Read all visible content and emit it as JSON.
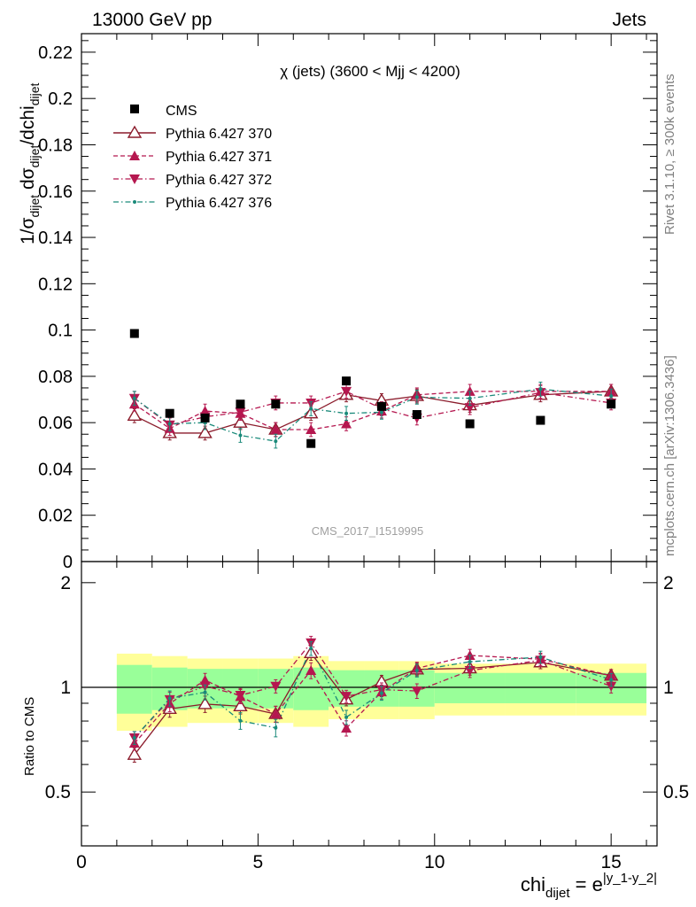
{
  "header": {
    "left": "13000 GeV pp",
    "right": "Jets"
  },
  "side_labels": {
    "rivet": "Rivet 3.1.10, ≥ 300k events",
    "mcplots": "mcplots.cern.ch [arXiv:1306.3436]"
  },
  "chart_data": {
    "type": "scatter",
    "title": "χ (jets) (3600 < Mjj < 4200)",
    "watermark": "CMS_2017_I1519995",
    "xlabel": {
      "base": "chi",
      "sub": "dijet",
      "mid": " = e",
      "sup": "|y_1-y_2|"
    },
    "ylabel": {
      "a": "1/σ",
      "a_sub": "dijet",
      "b": " dσ",
      "b_sub": "dijet",
      "c": "/dchi",
      "c_sub": "dijet"
    },
    "ratio_ylabel": "Ratio to CMS",
    "xlim": [
      0,
      16.3
    ],
    "ylim": [
      0,
      0.228
    ],
    "ratio_ylim": [
      0.35,
      2.3
    ],
    "ratio_log": true,
    "x_ticks": [
      0,
      5,
      10,
      15
    ],
    "y_ticks": [
      0,
      0.02,
      0.04,
      0.06,
      0.08,
      0.1,
      0.12,
      0.14,
      0.16,
      0.18,
      0.2,
      0.22
    ],
    "y_tick_labels": [
      "0",
      "0.02",
      "0.04",
      "0.06",
      "0.08",
      "0.1",
      "0.12",
      "0.14",
      "0.16",
      "0.18",
      "0.2",
      "0.22"
    ],
    "ratio_ticks": [
      0.5,
      1,
      2
    ],
    "ratio_tick_labels": [
      "0.5",
      "1",
      "2"
    ],
    "x": [
      1.5,
      2.5,
      3.5,
      4.5,
      5.5,
      6.5,
      7.5,
      8.5,
      9.5,
      11,
      13,
      15
    ],
    "bin_edges": [
      1,
      2,
      3,
      4,
      5,
      6,
      7,
      8,
      9,
      10,
      12,
      14,
      16
    ],
    "cms": {
      "name": "CMS",
      "values": [
        0.0985,
        0.064,
        0.062,
        0.068,
        0.068,
        0.051,
        0.078,
        0.067,
        0.0635,
        0.0595,
        0.061,
        0.068
      ]
    },
    "band_inner": [
      0.16,
      0.14,
      0.13,
      0.13,
      0.13,
      0.14,
      0.12,
      0.12,
      0.12,
      0.1,
      0.1,
      0.1
    ],
    "band_outer": [
      0.25,
      0.23,
      0.21,
      0.21,
      0.21,
      0.23,
      0.19,
      0.19,
      0.19,
      0.17,
      0.17,
      0.17
    ],
    "series": [
      {
        "name": "Pythia 6.427 370",
        "color": "#8b1b2b",
        "marker": "triangle-up-open",
        "line": "solid",
        "values": [
          0.063,
          0.0555,
          0.0555,
          0.06,
          0.057,
          0.064,
          0.072,
          0.0695,
          0.0715,
          0.0675,
          0.072,
          0.0735
        ],
        "err": [
          0.003,
          0.003,
          0.003,
          0.003,
          0.003,
          0.003,
          0.003,
          0.003,
          0.003,
          0.003,
          0.003,
          0.003
        ]
      },
      {
        "name": "Pythia 6.427 371",
        "color": "#b5174f",
        "marker": "triangle-up",
        "line": "dashed",
        "values": [
          0.068,
          0.0575,
          0.065,
          0.064,
          0.057,
          0.057,
          0.0595,
          0.065,
          0.072,
          0.0735,
          0.0735,
          0.0735
        ],
        "err": [
          0.003,
          0.003,
          0.003,
          0.003,
          0.003,
          0.003,
          0.003,
          0.003,
          0.003,
          0.003,
          0.003,
          0.003
        ]
      },
      {
        "name": "Pythia 6.427 372",
        "color": "#b5174f",
        "marker": "triangle-down",
        "line": "dashdot",
        "values": [
          0.0705,
          0.059,
          0.0625,
          0.0645,
          0.0685,
          0.0685,
          0.0735,
          0.066,
          0.062,
          0.0665,
          0.073,
          0.0685
        ],
        "err": [
          0.003,
          0.003,
          0.003,
          0.003,
          0.003,
          0.003,
          0.003,
          0.003,
          0.003,
          0.003,
          0.003,
          0.003
        ]
      },
      {
        "name": "Pythia 6.427 376",
        "color": "#1a8a7a",
        "marker": "dot",
        "line": "dashdot",
        "values": [
          0.0705,
          0.0595,
          0.06,
          0.0545,
          0.052,
          0.066,
          0.064,
          0.0645,
          0.071,
          0.0705,
          0.0745,
          0.0715
        ],
        "err": [
          0.003,
          0.003,
          0.003,
          0.003,
          0.003,
          0.003,
          0.003,
          0.003,
          0.003,
          0.003,
          0.003,
          0.003
        ]
      }
    ]
  }
}
